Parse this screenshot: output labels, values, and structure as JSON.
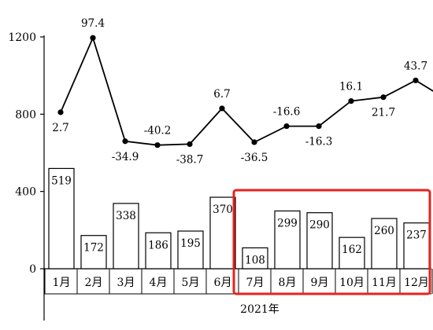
{
  "chart_data": {
    "type": "bar",
    "categories": [
      "1月",
      "2月",
      "3月",
      "4月",
      "5月",
      "6月",
      "7月",
      "8月",
      "9月",
      "10月",
      "11月",
      "12月"
    ],
    "xlabel": "2021年",
    "ylim": [
      0,
      1200
    ],
    "yticks": [
      0,
      400,
      800,
      1200
    ],
    "grid": false,
    "series": [
      {
        "kind": "bar",
        "values": [
          519,
          172,
          338,
          186,
          195,
          370,
          108,
          299,
          290,
          162,
          260,
          237
        ],
        "labels": [
          "519",
          "172",
          "338",
          "186",
          "195",
          "370",
          "108",
          "299",
          "290",
          "162",
          "260",
          "237"
        ]
      },
      {
        "kind": "line",
        "values": [
          810,
          1195,
          660,
          640,
          645,
          830,
          655,
          738,
          738,
          868,
          888,
          975
        ],
        "labels": [
          "2.7",
          "97.4",
          "-34.9",
          "-40.2",
          "-38.7",
          "6.7",
          "-36.5",
          "-16.6",
          "-16.3",
          "16.1",
          "21.7",
          "43.7"
        ],
        "label_position": [
          "below",
          "above",
          "below",
          "above",
          "below",
          "above",
          "below",
          "above",
          "below",
          "above",
          "below",
          "above"
        ]
      }
    ],
    "highlight": {
      "from": "7月",
      "to": "12月",
      "color": "#e8221d"
    },
    "colors": {
      "bar_fill": "#ffffff",
      "bar_stroke": "#000000",
      "line": "#000000",
      "axis": "#000000"
    }
  }
}
